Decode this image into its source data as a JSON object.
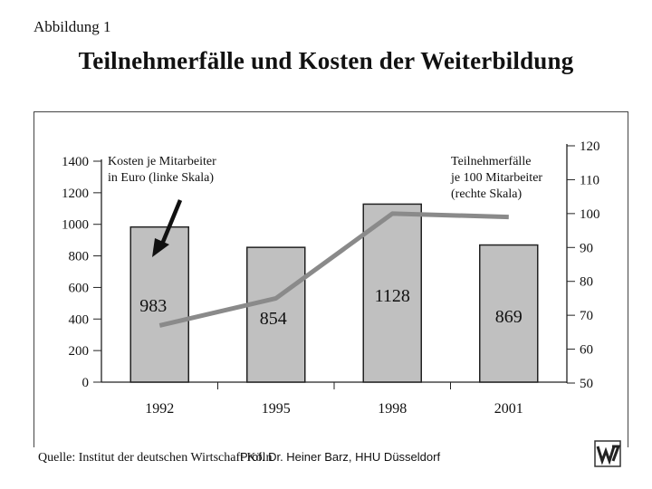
{
  "header": {
    "figure_label": "Abbildung 1",
    "title": "Teilnehmerfälle und Kosten der Weiterbildung"
  },
  "chart_data": {
    "type": "bar",
    "title": "Teilnehmerfälle und Kosten der Weiterbildung",
    "categories": [
      "1992",
      "1995",
      "1998",
      "2001"
    ],
    "series": [
      {
        "name": "Kosten je Mitarbeiter in Euro (linke Skala)",
        "type": "bar",
        "axis": "left",
        "values": [
          983,
          854,
          1128,
          869
        ],
        "data_labels": [
          "983",
          "854",
          "1128",
          "869"
        ]
      },
      {
        "name": "Teilnehmerfälle je 100 Mitarbeiter (rechte Skala)",
        "type": "line",
        "axis": "right",
        "values": [
          67,
          75,
          100,
          99
        ]
      }
    ],
    "left_axis": {
      "ylim": [
        0,
        1400
      ],
      "ticks": [
        "0",
        "200",
        "400",
        "600",
        "800",
        "1000",
        "1200",
        "1400"
      ]
    },
    "right_axis": {
      "ylim": [
        50,
        120
      ],
      "ticks": [
        "50",
        "60",
        "70",
        "80",
        "90",
        "100",
        "110",
        "120"
      ]
    },
    "legend_left": [
      "Kosten je Mitarbeiter",
      "in Euro  (linke Skala)"
    ],
    "legend_right": [
      "Teilnehmerfälle",
      "je 100 Mitarbeiter",
      "(rechte Skala)"
    ],
    "colors": {
      "bar": "#c0c0c0",
      "line": "#8a8a8a",
      "axis": "#222222"
    },
    "grid": false
  },
  "footer": {
    "source": "Quelle: Institut der deutschen Wirtschaft Köln",
    "author": "Prof. Dr. Heiner Barz,  HHU Düsseldorf"
  }
}
